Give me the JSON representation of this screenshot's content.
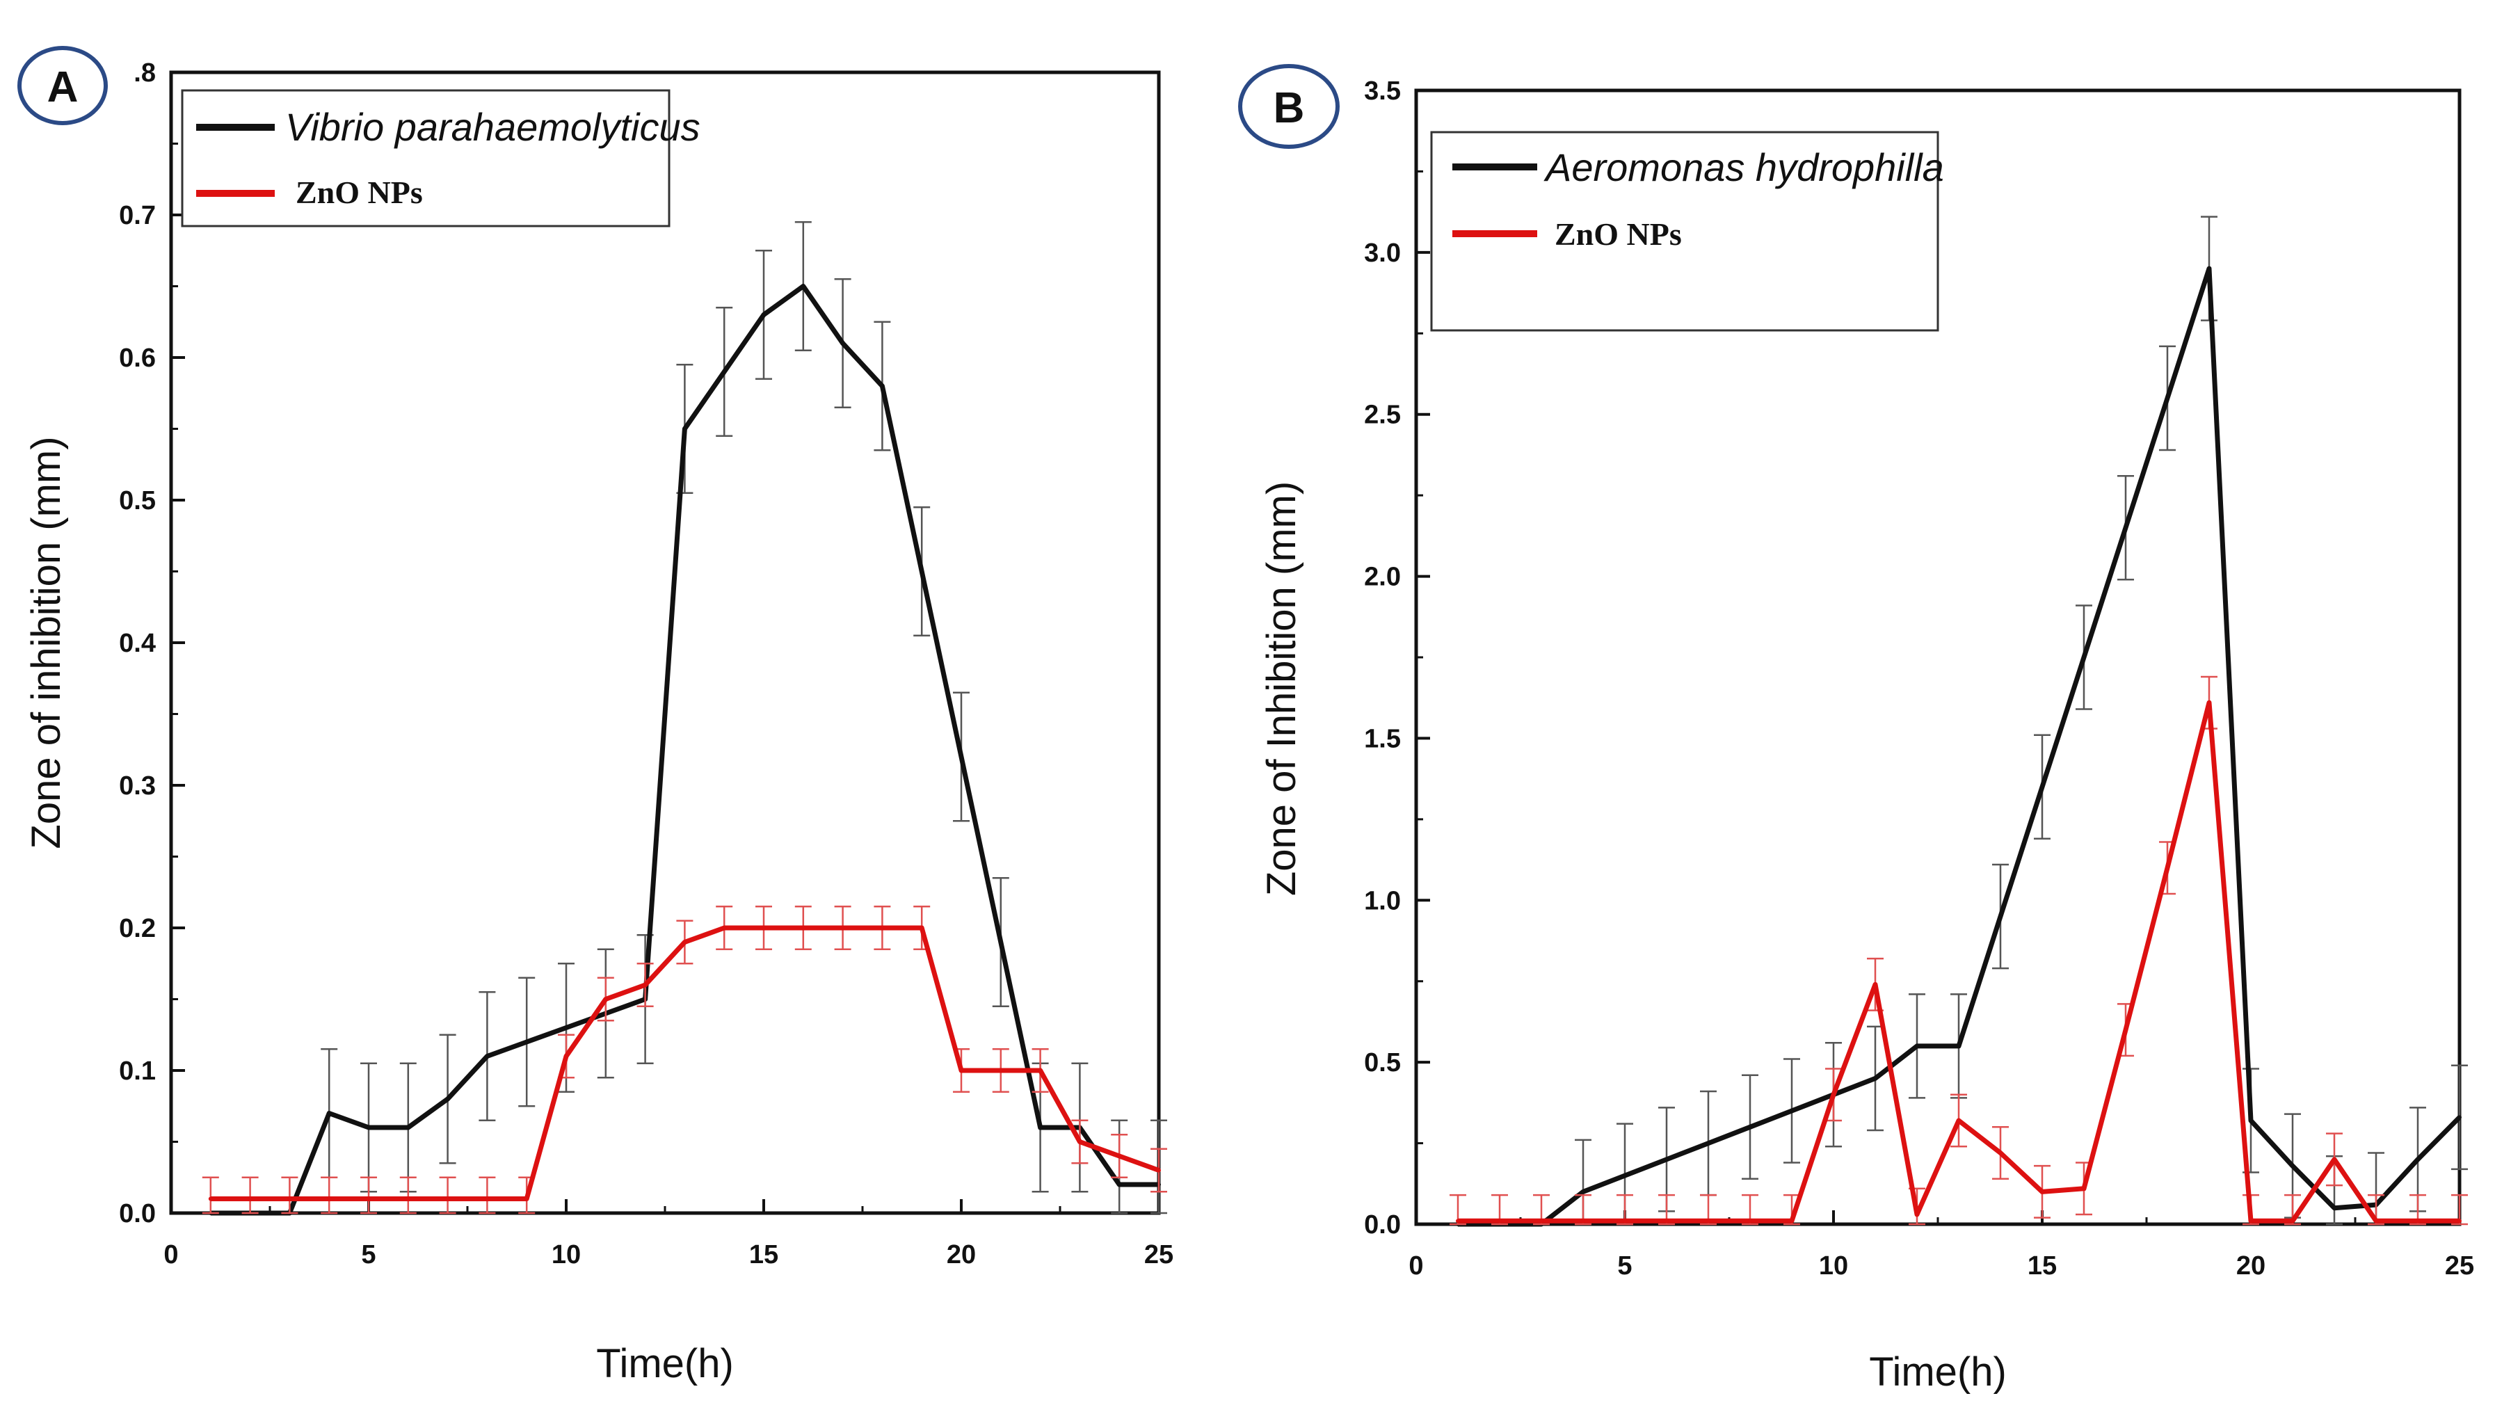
{
  "chart_data": [
    {
      "panel": "A",
      "type": "line",
      "xlabel": "Time(h)",
      "ylabel": "Zone of inhibition (mm)",
      "xlim": [
        0,
        25
      ],
      "ylim": [
        0,
        0.8
      ],
      "xticks": [
        0,
        5,
        10,
        15,
        20,
        25
      ],
      "xtick_labels": [
        "0",
        "5",
        "10",
        "15",
        "20",
        "25"
      ],
      "yticks": [
        0,
        0.1,
        0.2,
        0.3,
        0.4,
        0.5,
        0.6,
        0.7,
        0.8
      ],
      "ytick_labels": [
        "0.0",
        "0.1",
        "0.2",
        "0.3",
        "0.4",
        "0.5",
        "0.6",
        "0.7",
        ".8"
      ],
      "legend": {
        "placement": "top-left"
      },
      "series": [
        {
          "name": "Vibrio parahaemolyticus",
          "color": "#111111",
          "x": [
            1,
            2,
            3,
            4,
            5,
            6,
            7,
            8,
            9,
            10,
            11,
            12,
            13,
            14,
            15,
            16,
            17,
            18,
            19,
            20,
            21,
            22,
            23,
            24,
            25
          ],
          "y": [
            0,
            0,
            0,
            0.07,
            0.06,
            0.06,
            0.08,
            0.11,
            0.12,
            0.13,
            0.14,
            0.15,
            0.55,
            0.59,
            0.63,
            0.65,
            0.61,
            0.58,
            0.45,
            0.32,
            0.19,
            0.06,
            0.06,
            0.02,
            0.02
          ],
          "err": [
            0,
            0,
            0,
            0.045,
            0.045,
            0.045,
            0.045,
            0.045,
            0.045,
            0.045,
            0.045,
            0.045,
            0.045,
            0.045,
            0.045,
            0.045,
            0.045,
            0.045,
            0.045,
            0.045,
            0.045,
            0.045,
            0.045,
            0.045,
            0.045
          ]
        },
        {
          "name": "ZnO NPs",
          "color": "#dd1111",
          "x": [
            1,
            2,
            3,
            4,
            5,
            6,
            7,
            8,
            9,
            10,
            11,
            12,
            13,
            14,
            15,
            16,
            17,
            18,
            19,
            20,
            21,
            22,
            23,
            24,
            25
          ],
          "y": [
            0.01,
            0.01,
            0.01,
            0.01,
            0.01,
            0.01,
            0.01,
            0.01,
            0.01,
            0.11,
            0.15,
            0.16,
            0.19,
            0.2,
            0.2,
            0.2,
            0.2,
            0.2,
            0.2,
            0.1,
            0.1,
            0.1,
            0.05,
            0.04,
            0.03
          ],
          "err": [
            0.015,
            0.015,
            0.015,
            0.015,
            0.015,
            0.015,
            0.015,
            0.015,
            0.015,
            0.015,
            0.015,
            0.015,
            0.015,
            0.015,
            0.015,
            0.015,
            0.015,
            0.015,
            0.015,
            0.015,
            0.015,
            0.015,
            0.015,
            0.015,
            0.015
          ]
        }
      ]
    },
    {
      "panel": "B",
      "type": "line",
      "xlabel": "Time(h)",
      "ylabel": "Zone of Inhibition (mm)",
      "xlim": [
        0,
        25
      ],
      "ylim": [
        0,
        3.5
      ],
      "xticks": [
        0,
        5,
        10,
        15,
        20,
        25
      ],
      "xtick_labels": [
        "0",
        "5",
        "10",
        "15",
        "20",
        "25"
      ],
      "yticks": [
        0,
        0.5,
        1.0,
        1.5,
        2.0,
        2.5,
        3.0,
        3.5
      ],
      "ytick_labels": [
        "0.0",
        "0.5",
        "1.0",
        "1.5",
        "2.0",
        "2.5",
        "3.0",
        "3.5"
      ],
      "legend": {
        "placement": "top-left"
      },
      "series": [
        {
          "name": "Aeromonas hydrophilla",
          "color": "#111111",
          "x": [
            1,
            2,
            3,
            4,
            5,
            6,
            7,
            8,
            9,
            10,
            11,
            12,
            13,
            14,
            15,
            16,
            17,
            18,
            19,
            20,
            21,
            22,
            23,
            24,
            25
          ],
          "y": [
            0,
            0,
            0,
            0.1,
            0.15,
            0.2,
            0.25,
            0.3,
            0.35,
            0.4,
            0.45,
            0.55,
            0.55,
            0.95,
            1.35,
            1.75,
            2.15,
            2.55,
            2.95,
            0.32,
            0.18,
            0.05,
            0.06,
            0.2,
            0.33
          ],
          "err": [
            0,
            0,
            0,
            0.16,
            0.16,
            0.16,
            0.16,
            0.16,
            0.16,
            0.16,
            0.16,
            0.16,
            0.16,
            0.16,
            0.16,
            0.16,
            0.16,
            0.16,
            0.16,
            0.16,
            0.16,
            0.16,
            0.16,
            0.16,
            0.16
          ]
        },
        {
          "name": "ZnO NPs",
          "color": "#dd1111",
          "x": [
            1,
            2,
            3,
            4,
            5,
            6,
            7,
            8,
            9,
            10,
            11,
            12,
            13,
            14,
            15,
            16,
            17,
            18,
            19,
            20,
            21,
            22,
            23,
            24,
            25
          ],
          "y": [
            0.01,
            0.01,
            0.01,
            0.01,
            0.01,
            0.01,
            0.01,
            0.01,
            0.01,
            0.4,
            0.74,
            0.03,
            0.32,
            0.22,
            0.1,
            0.11,
            0.6,
            1.1,
            1.61,
            0.01,
            0.01,
            0.2,
            0.01,
            0.01,
            0.01
          ],
          "err": [
            0.08,
            0.08,
            0.08,
            0.08,
            0.08,
            0.08,
            0.08,
            0.08,
            0.08,
            0.08,
            0.08,
            0.08,
            0.08,
            0.08,
            0.08,
            0.08,
            0.08,
            0.08,
            0.08,
            0.08,
            0.08,
            0.08,
            0.08,
            0.08,
            0.08
          ]
        }
      ]
    }
  ],
  "badges": {
    "a": "A",
    "b": "B"
  },
  "colors": {
    "badge_ring": "#2b4a86",
    "series_black": "#111111",
    "series_red": "#dd1111",
    "axis": "#111111"
  }
}
